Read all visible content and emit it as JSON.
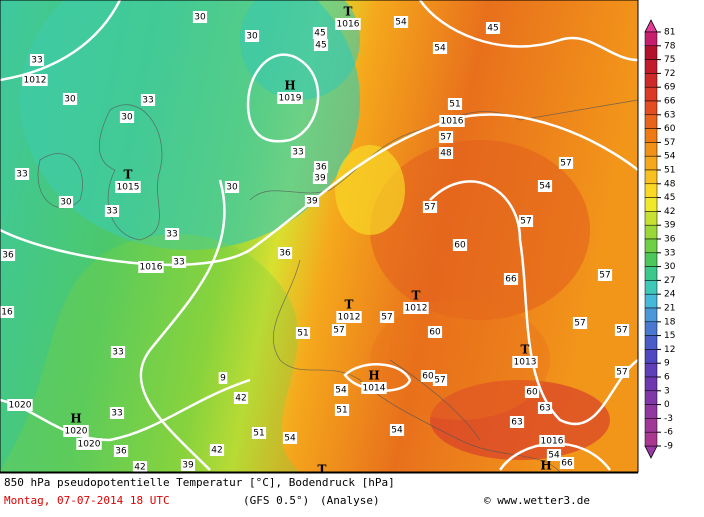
{
  "legend": {
    "ticks": [
      81,
      78,
      75,
      72,
      69,
      66,
      63,
      60,
      57,
      54,
      51,
      48,
      45,
      42,
      39,
      36,
      33,
      30,
      27,
      24,
      21,
      18,
      15,
      12,
      9,
      6,
      3,
      0,
      -3,
      -6,
      -9
    ],
    "colors": [
      "#c51f6e",
      "#b3122c",
      "#c21c2c",
      "#cf2a2a",
      "#db3a28",
      "#e24e22",
      "#e8641c",
      "#ee7a16",
      "#f29118",
      "#f5a81c",
      "#f8c020",
      "#fad823",
      "#f0e82a",
      "#c8e033",
      "#99d838",
      "#6fcf45",
      "#4cc85a",
      "#3cc88a",
      "#3ec8b8",
      "#46b8d8",
      "#4a98d8",
      "#4a78d0",
      "#4a5cc8",
      "#5048c0",
      "#6040b8",
      "#7038b0",
      "#8038a8",
      "#9038a0",
      "#a03898",
      "#a83890"
    ]
  },
  "map": {
    "systems": [
      {
        "symbol": "T",
        "pressure": 1016
      },
      {
        "symbol": "H",
        "pressure": 1019
      },
      {
        "symbol": "T",
        "pressure": 1015
      },
      {
        "symbol": "T",
        "pressure": 1012
      },
      {
        "symbol": "T",
        "pressure": 1012
      },
      {
        "symbol": "H",
        "pressure": 1014
      },
      {
        "symbol": "T",
        "pressure": 1013
      },
      {
        "symbol": "H",
        "pressure": 1020
      },
      {
        "symbol": "T"
      },
      {
        "symbol": "H"
      }
    ],
    "isobar_labels": [
      1012,
      1016,
      1016,
      1020,
      1020,
      1016,
      16
    ],
    "contour_labels": [
      30,
      30,
      33,
      30,
      33,
      30,
      33,
      30,
      33,
      30,
      33,
      36,
      39,
      39,
      33,
      33,
      36,
      36,
      33,
      33,
      36,
      42,
      39,
      42,
      9,
      42,
      51,
      54,
      51,
      57,
      54,
      51,
      54,
      57,
      60,
      57,
      60,
      60,
      57,
      66,
      57,
      54,
      57,
      57,
      57,
      57,
      57,
      60,
      63,
      63,
      66,
      54,
      57,
      48,
      51,
      54,
      54,
      45,
      45,
      45
    ]
  },
  "footer": {
    "title": "850 hPa pseudopotentielle Temperatur [°C], Bodendruck [hPa]",
    "date": "Montag, 07-07-2014  18 UTC",
    "model": "(GFS 0.5°)",
    "run": "(Analyse)",
    "credit": "© www.wetter3.de"
  }
}
